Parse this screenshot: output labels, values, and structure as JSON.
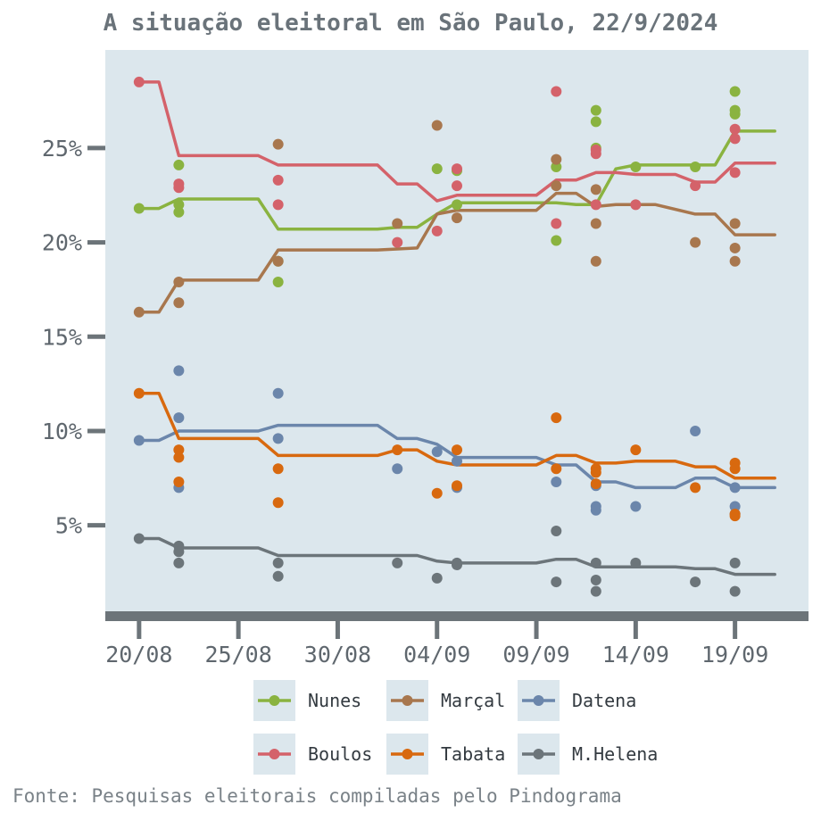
{
  "chart_data": {
    "type": "line",
    "title": "A situação eleitoral em São Paulo, 22/9/2024",
    "caption": "Fonte: Pesquisas eleitorais compiladas pelo Pindograma",
    "xlabel": "",
    "ylabel": "",
    "x_ticks": [
      {
        "label": "20/08",
        "day": 0
      },
      {
        "label": "25/08",
        "day": 5
      },
      {
        "label": "30/08",
        "day": 10
      },
      {
        "label": "04/09",
        "day": 15
      },
      {
        "label": "09/09",
        "day": 20
      },
      {
        "label": "14/09",
        "day": 25
      },
      {
        "label": "19/09",
        "day": 30
      }
    ],
    "y_ticks": [
      {
        "label": "5%",
        "value": 5
      },
      {
        "label": "10%",
        "value": 10
      },
      {
        "label": "15%",
        "value": 15
      },
      {
        "label": "20%",
        "value": 20
      },
      {
        "label": "25%",
        "value": 25
      }
    ],
    "xlim": [
      -1.7,
      33.7
    ],
    "ylim": [
      0.3,
      30.2
    ],
    "grid": false,
    "legend_position": "bottom",
    "colors": {
      "panel_bg": "#dce7ed",
      "axis": "#6c7479",
      "title": "#6a737a"
    },
    "series": [
      {
        "name": "Nunes",
        "color": "#8ab340",
        "trend": [
          [
            0,
            21.8
          ],
          [
            1,
            21.8
          ],
          [
            2,
            22.3
          ],
          [
            6,
            22.3
          ],
          [
            7,
            20.7
          ],
          [
            12,
            20.7
          ],
          [
            13,
            20.8
          ],
          [
            14,
            20.8
          ],
          [
            15,
            21.5
          ],
          [
            16,
            22.1
          ],
          [
            21,
            22.1
          ],
          [
            22,
            22.0
          ],
          [
            23,
            22.0
          ],
          [
            24,
            23.9
          ],
          [
            25,
            24.1
          ],
          [
            29,
            24.1
          ],
          [
            30,
            25.9
          ],
          [
            32,
            25.9
          ]
        ],
        "points": [
          [
            0,
            21.8
          ],
          [
            2,
            24.1
          ],
          [
            2,
            22.0
          ],
          [
            2,
            21.6
          ],
          [
            7,
            19.0
          ],
          [
            7,
            17.9
          ],
          [
            15,
            23.9
          ],
          [
            16,
            23.8
          ],
          [
            16,
            22.0
          ],
          [
            21,
            24.0
          ],
          [
            21,
            20.1
          ],
          [
            23,
            27.0
          ],
          [
            23,
            26.4
          ],
          [
            23,
            25.0
          ],
          [
            25,
            24.0
          ],
          [
            28,
            24.0
          ],
          [
            30,
            28.0
          ],
          [
            30,
            27.0
          ],
          [
            30,
            26.8
          ]
        ]
      },
      {
        "name": "Marçal",
        "color": "#a8774e",
        "trend": [
          [
            0,
            16.3
          ],
          [
            1,
            16.3
          ],
          [
            2,
            18.0
          ],
          [
            6,
            18.0
          ],
          [
            7,
            19.6
          ],
          [
            12,
            19.6
          ],
          [
            14,
            19.7
          ],
          [
            15,
            21.5
          ],
          [
            16,
            21.7
          ],
          [
            20,
            21.7
          ],
          [
            21,
            22.6
          ],
          [
            22,
            22.6
          ],
          [
            23,
            21.9
          ],
          [
            24,
            22.0
          ],
          [
            26,
            22.0
          ],
          [
            28,
            21.5
          ],
          [
            29,
            21.5
          ],
          [
            30,
            20.4
          ],
          [
            32,
            20.4
          ]
        ],
        "points": [
          [
            0,
            16.3
          ],
          [
            2,
            17.9
          ],
          [
            2,
            16.8
          ],
          [
            7,
            25.2
          ],
          [
            7,
            19.0
          ],
          [
            13,
            21.0
          ],
          [
            15,
            26.2
          ],
          [
            16,
            21.3
          ],
          [
            21,
            24.4
          ],
          [
            21,
            23.0
          ],
          [
            23,
            22.8
          ],
          [
            23,
            21.0
          ],
          [
            23,
            19.0
          ],
          [
            28,
            20.0
          ],
          [
            30,
            21.0
          ],
          [
            30,
            19.7
          ],
          [
            30,
            19.0
          ]
        ]
      },
      {
        "name": "Datena",
        "color": "#6b86ab",
        "trend": [
          [
            0,
            9.5
          ],
          [
            1,
            9.5
          ],
          [
            2,
            10.0
          ],
          [
            6,
            10.0
          ],
          [
            7,
            10.3
          ],
          [
            12,
            10.3
          ],
          [
            13,
            9.6
          ],
          [
            14,
            9.6
          ],
          [
            15,
            9.3
          ],
          [
            16,
            8.6
          ],
          [
            20,
            8.6
          ],
          [
            21,
            8.2
          ],
          [
            22,
            8.2
          ],
          [
            23,
            7.3
          ],
          [
            24,
            7.3
          ],
          [
            25,
            7.0
          ],
          [
            27,
            7.0
          ],
          [
            28,
            7.5
          ],
          [
            29,
            7.5
          ],
          [
            30,
            7.0
          ],
          [
            32,
            7.0
          ]
        ],
        "points": [
          [
            0,
            9.5
          ],
          [
            2,
            13.2
          ],
          [
            2,
            10.7
          ],
          [
            2,
            7.0
          ],
          [
            7,
            12.0
          ],
          [
            7,
            9.6
          ],
          [
            13,
            8.0
          ],
          [
            15,
            8.9
          ],
          [
            16,
            8.4
          ],
          [
            16,
            7.0
          ],
          [
            21,
            7.3
          ],
          [
            23,
            7.1
          ],
          [
            23,
            6.0
          ],
          [
            23,
            5.8
          ],
          [
            25,
            6.0
          ],
          [
            28,
            10.0
          ],
          [
            30,
            7.0
          ],
          [
            30,
            6.0
          ],
          [
            30,
            5.6
          ]
        ]
      },
      {
        "name": "Boulos",
        "color": "#d4626a",
        "trend": [
          [
            0,
            28.5
          ],
          [
            1,
            28.5
          ],
          [
            2,
            24.6
          ],
          [
            6,
            24.6
          ],
          [
            7,
            24.1
          ],
          [
            12,
            24.1
          ],
          [
            13,
            23.1
          ],
          [
            14,
            23.1
          ],
          [
            15,
            22.2
          ],
          [
            16,
            22.5
          ],
          [
            20,
            22.5
          ],
          [
            21,
            23.3
          ],
          [
            22,
            23.3
          ],
          [
            23,
            23.7
          ],
          [
            24,
            23.7
          ],
          [
            25,
            23.6
          ],
          [
            27,
            23.6
          ],
          [
            28,
            23.2
          ],
          [
            29,
            23.2
          ],
          [
            30,
            24.2
          ],
          [
            32,
            24.2
          ]
        ],
        "points": [
          [
            0,
            28.5
          ],
          [
            2,
            23.1
          ],
          [
            2,
            22.9
          ],
          [
            7,
            23.3
          ],
          [
            7,
            22.0
          ],
          [
            13,
            20.0
          ],
          [
            15,
            20.6
          ],
          [
            16,
            23.9
          ],
          [
            16,
            23.0
          ],
          [
            21,
            28.0
          ],
          [
            21,
            21.0
          ],
          [
            23,
            24.9
          ],
          [
            23,
            24.7
          ],
          [
            23,
            22.0
          ],
          [
            25,
            22.0
          ],
          [
            28,
            23.0
          ],
          [
            30,
            26.0
          ],
          [
            30,
            25.5
          ],
          [
            30,
            23.7
          ]
        ]
      },
      {
        "name": "Tabata",
        "color": "#d8690f",
        "trend": [
          [
            0,
            12.0
          ],
          [
            1,
            12.0
          ],
          [
            2,
            9.6
          ],
          [
            6,
            9.6
          ],
          [
            7,
            8.7
          ],
          [
            12,
            8.7
          ],
          [
            13,
            9.0
          ],
          [
            14,
            9.0
          ],
          [
            15,
            8.4
          ],
          [
            16,
            8.2
          ],
          [
            20,
            8.2
          ],
          [
            21,
            8.7
          ],
          [
            22,
            8.7
          ],
          [
            23,
            8.3
          ],
          [
            24,
            8.3
          ],
          [
            25,
            8.4
          ],
          [
            27,
            8.4
          ],
          [
            28,
            8.1
          ],
          [
            29,
            8.1
          ],
          [
            30,
            7.5
          ],
          [
            32,
            7.5
          ]
        ],
        "points": [
          [
            0,
            12.0
          ],
          [
            2,
            9.0
          ],
          [
            2,
            8.6
          ],
          [
            2,
            7.3
          ],
          [
            7,
            8.0
          ],
          [
            7,
            6.2
          ],
          [
            13,
            9.0
          ],
          [
            15,
            6.7
          ],
          [
            16,
            9.0
          ],
          [
            16,
            7.1
          ],
          [
            21,
            10.7
          ],
          [
            21,
            8.0
          ],
          [
            23,
            8.0
          ],
          [
            23,
            7.8
          ],
          [
            23,
            7.2
          ],
          [
            25,
            9.0
          ],
          [
            28,
            7.0
          ],
          [
            30,
            8.3
          ],
          [
            30,
            8.0
          ],
          [
            30,
            5.6
          ],
          [
            30,
            5.5
          ]
        ]
      },
      {
        "name": "M.Helena",
        "color": "#6c757a",
        "trend": [
          [
            0,
            4.3
          ],
          [
            1,
            4.3
          ],
          [
            2,
            3.8
          ],
          [
            6,
            3.8
          ],
          [
            7,
            3.4
          ],
          [
            12,
            3.4
          ],
          [
            13,
            3.4
          ],
          [
            14,
            3.4
          ],
          [
            15,
            3.1
          ],
          [
            16,
            3.0
          ],
          [
            20,
            3.0
          ],
          [
            21,
            3.2
          ],
          [
            22,
            3.2
          ],
          [
            23,
            2.8
          ],
          [
            24,
            2.8
          ],
          [
            25,
            2.8
          ],
          [
            27,
            2.8
          ],
          [
            28,
            2.7
          ],
          [
            29,
            2.7
          ],
          [
            30,
            2.4
          ],
          [
            32,
            2.4
          ]
        ],
        "points": [
          [
            0,
            4.3
          ],
          [
            2,
            3.9
          ],
          [
            2,
            3.6
          ],
          [
            2,
            3.0
          ],
          [
            7,
            3.0
          ],
          [
            7,
            2.3
          ],
          [
            13,
            3.0
          ],
          [
            15,
            2.2
          ],
          [
            16,
            3.0
          ],
          [
            16,
            2.9
          ],
          [
            21,
            4.7
          ],
          [
            21,
            2.0
          ],
          [
            23,
            3.0
          ],
          [
            23,
            2.1
          ],
          [
            23,
            1.5
          ],
          [
            25,
            3.0
          ],
          [
            28,
            2.0
          ],
          [
            30,
            3.0
          ],
          [
            30,
            1.5
          ]
        ]
      }
    ]
  }
}
